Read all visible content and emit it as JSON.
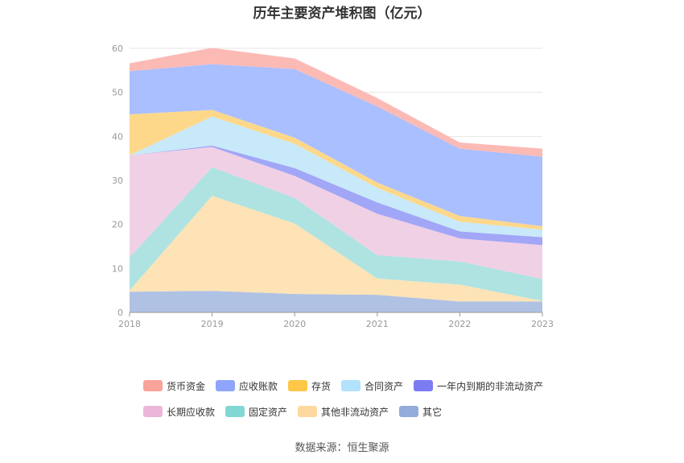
{
  "title": "历年主要资产堆积图（亿元）",
  "source": "数据来源：恒生聚源",
  "chart_data": {
    "type": "area",
    "stacked": true,
    "x": [
      "2018",
      "2019",
      "2020",
      "2021",
      "2022",
      "2023"
    ],
    "ylim": [
      0,
      60
    ],
    "yticks": [
      0,
      10,
      20,
      30,
      40,
      50,
      60
    ],
    "grid": true,
    "legend_position": "bottom",
    "series": [
      {
        "name": "其它",
        "color": "#b0c2e3",
        "values": [
          4.7,
          4.9,
          4.2,
          4.0,
          2.5,
          2.5
        ]
      },
      {
        "name": "其他非流动资产",
        "color": "#fde3b6",
        "values": [
          0.3,
          21.6,
          16.0,
          3.7,
          3.8,
          0.1
        ]
      },
      {
        "name": "固定资产",
        "color": "#aee3e2",
        "values": [
          7.5,
          6.5,
          5.8,
          5.3,
          5.3,
          5.0
        ]
      },
      {
        "name": "长期应收款",
        "color": "#f0d0e5",
        "values": [
          23.2,
          4.6,
          5.0,
          9.4,
          5.2,
          7.7
        ]
      },
      {
        "name": "一年内到期的非流动资产",
        "color": "#a2a6f6",
        "values": [
          0.0,
          0.3,
          1.8,
          2.6,
          1.6,
          1.8
        ]
      },
      {
        "name": "合同资产",
        "color": "#c7e9fa",
        "values": [
          0.0,
          6.6,
          5.5,
          3.3,
          2.2,
          1.7
        ]
      },
      {
        "name": "存货",
        "color": "#fed88a",
        "values": [
          9.3,
          1.5,
          1.4,
          1.2,
          1.3,
          0.8
        ]
      },
      {
        "name": "应收账款",
        "color": "#aabfff",
        "values": [
          9.8,
          10.4,
          15.6,
          17.3,
          15.3,
          15.8
        ]
      },
      {
        "name": "货币资金",
        "color": "#fcbab5",
        "values": [
          1.8,
          3.7,
          2.4,
          1.9,
          1.4,
          1.8
        ]
      }
    ]
  },
  "legend": {
    "rows": [
      [
        {
          "label": "货币资金",
          "color": "#f9a39b"
        },
        {
          "label": "应收账款",
          "color": "#8ea5fb"
        },
        {
          "label": "存货",
          "color": "#fdc748"
        },
        {
          "label": "合同资产",
          "color": "#b2e2fc"
        },
        {
          "label": "一年内到期的非流动资产",
          "color": "#7b7cf2"
        }
      ],
      [
        {
          "label": "长期应收款",
          "color": "#ebb6d9"
        },
        {
          "label": "固定资产",
          "color": "#82d7d5"
        },
        {
          "label": "其他非流动资产",
          "color": "#fdd9a0"
        },
        {
          "label": "其它",
          "color": "#93acd9"
        }
      ]
    ]
  }
}
